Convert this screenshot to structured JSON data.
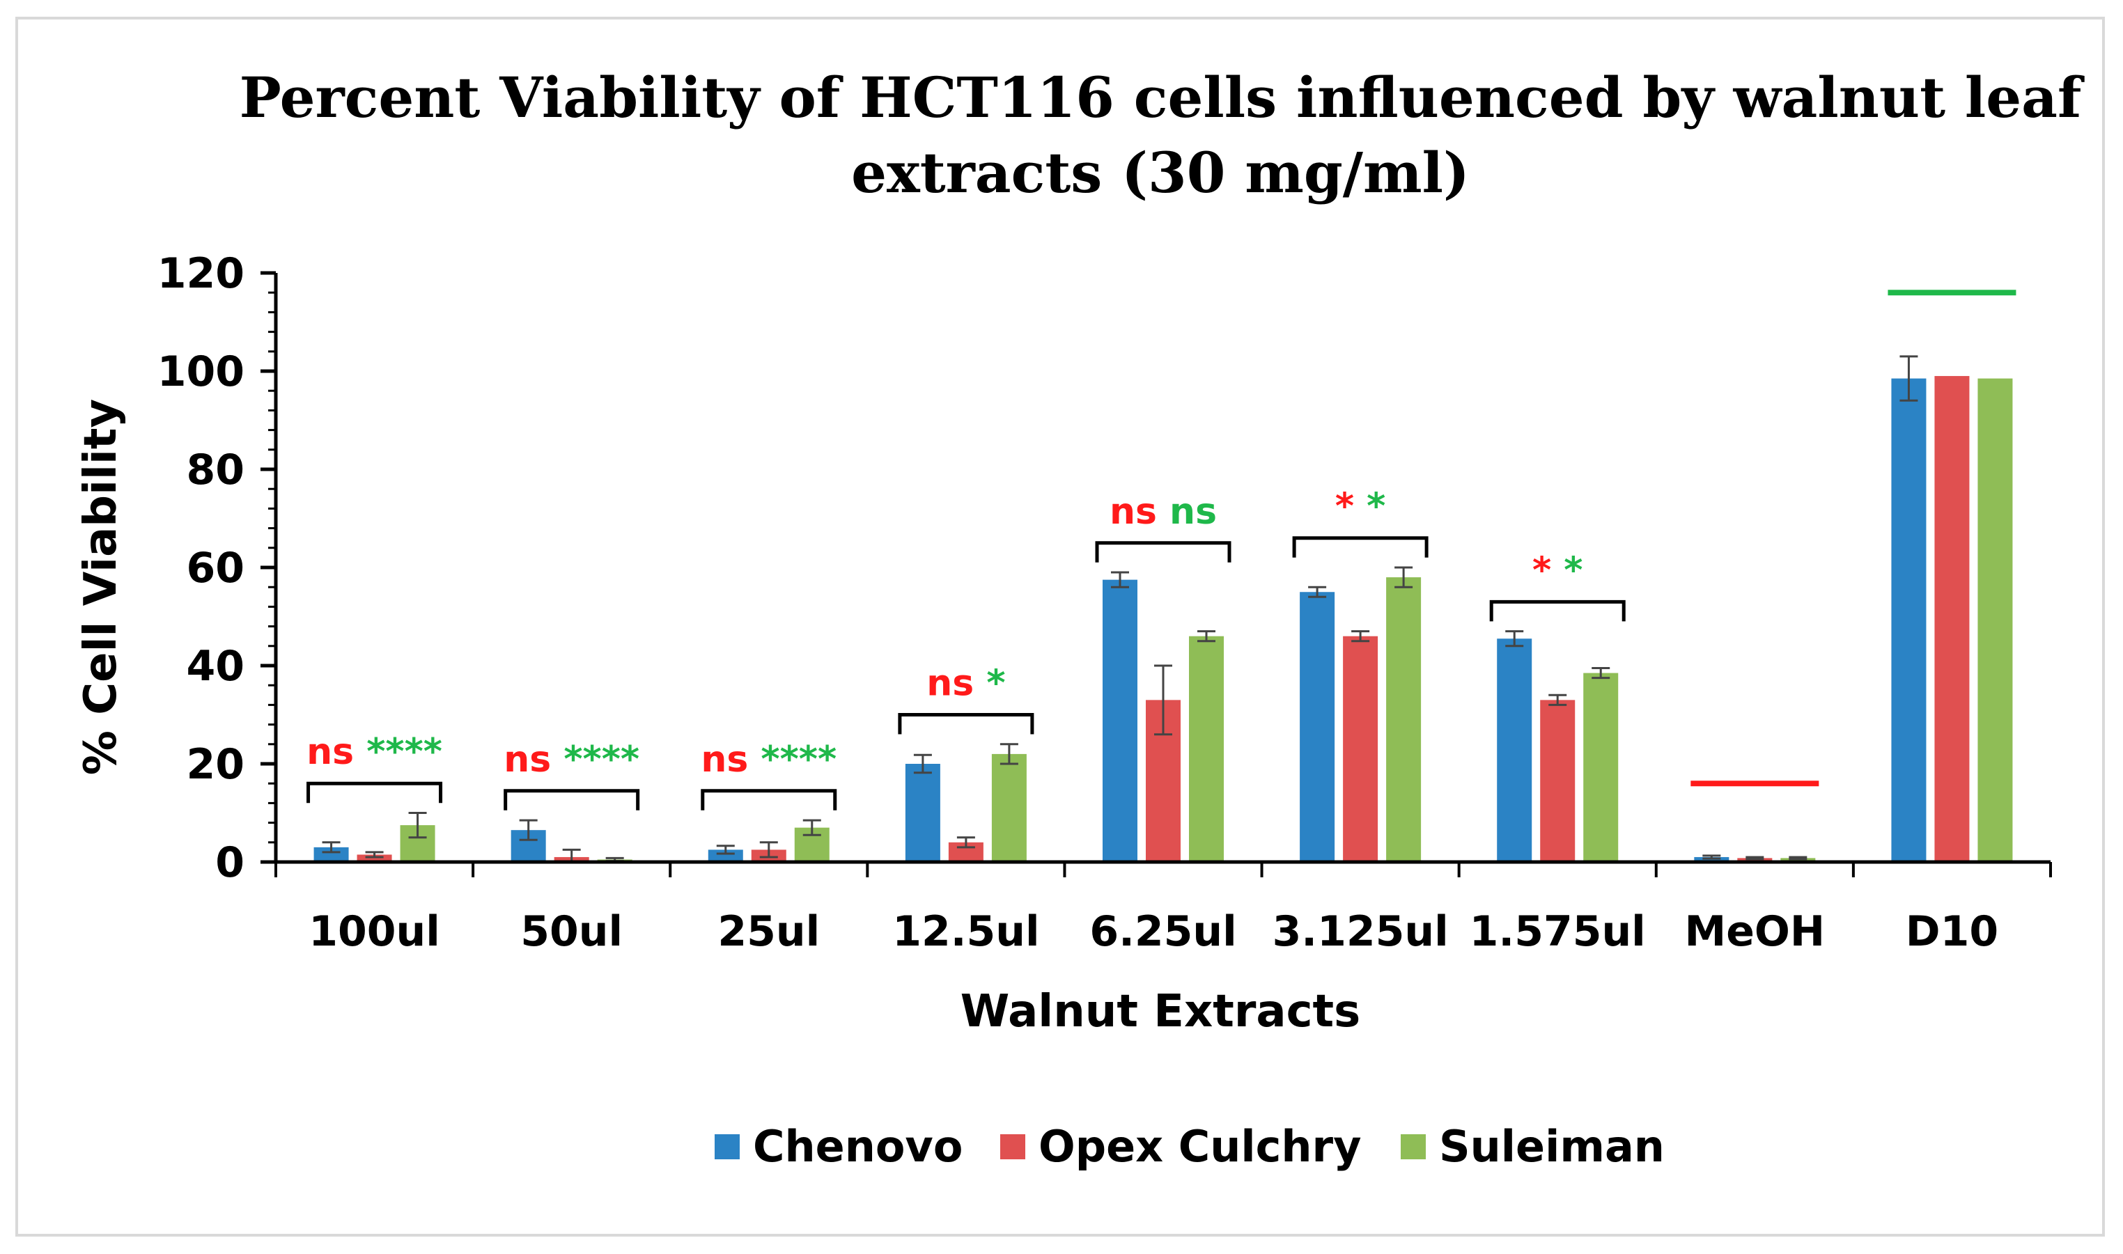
{
  "chart_data": {
    "type": "bar",
    "title_lines": [
      "Percent Viability of HCT116 cells influenced by walnut leaf",
      "extracts (30 mg/ml)"
    ],
    "xlabel": "Walnut Extracts",
    "ylabel": "% Cell Viability",
    "ylim": [
      0,
      120
    ],
    "yticks": [
      "0",
      "20",
      "40",
      "60",
      "80",
      "100",
      "120"
    ],
    "categories": [
      "100ul",
      "50ul",
      "25ul",
      "12.5ul",
      "6.25ul",
      "3.125ul",
      "1.575ul",
      "MeOH",
      "D10"
    ],
    "series": [
      {
        "name": "Chenovo",
        "color": "#2b83c5",
        "values": [
          3,
          6.5,
          2.5,
          20,
          57.5,
          55,
          45.5,
          1,
          98.5
        ],
        "errors": [
          1,
          2,
          0.8,
          1.8,
          1.5,
          1,
          1.5,
          0.3,
          4.5
        ]
      },
      {
        "name": "Opex Culchry",
        "color": "#e05050",
        "values": [
          1.5,
          1,
          2.5,
          4,
          33,
          46,
          33,
          0.8,
          99
        ],
        "errors": [
          0.5,
          1.5,
          1.5,
          1,
          7,
          1,
          1,
          0.2,
          0
        ]
      },
      {
        "name": "Suleiman",
        "color": "#8fbd56",
        "values": [
          7.5,
          0.5,
          7,
          22,
          46,
          58,
          38.5,
          0.8,
          98.5
        ],
        "errors": [
          2.5,
          0.3,
          1.5,
          2,
          1,
          2,
          1,
          0.2,
          0
        ]
      }
    ],
    "legend_position": "bottom",
    "significance": [
      {
        "category": "100ul",
        "red": "ns",
        "green": "****"
      },
      {
        "category": "50ul",
        "red": "ns",
        "green": "****"
      },
      {
        "category": "25ul",
        "red": "ns",
        "green": "****"
      },
      {
        "category": "12.5ul",
        "red": "ns",
        "green": "*"
      },
      {
        "category": "6.25ul",
        "red": "ns",
        "green": "ns"
      },
      {
        "category": "3.125ul",
        "red": "*",
        "green": "*"
      },
      {
        "category": "1.575ul",
        "red": "*",
        "green": "*"
      }
    ],
    "control_lines": [
      {
        "category": "MeOH",
        "value": 16,
        "color": "#ff1a1a"
      },
      {
        "category": "D10",
        "value": 116,
        "color": "#1fb84a"
      }
    ],
    "significance_colors": {
      "red": "#ff1a1a",
      "green": "#1fb84a"
    }
  }
}
